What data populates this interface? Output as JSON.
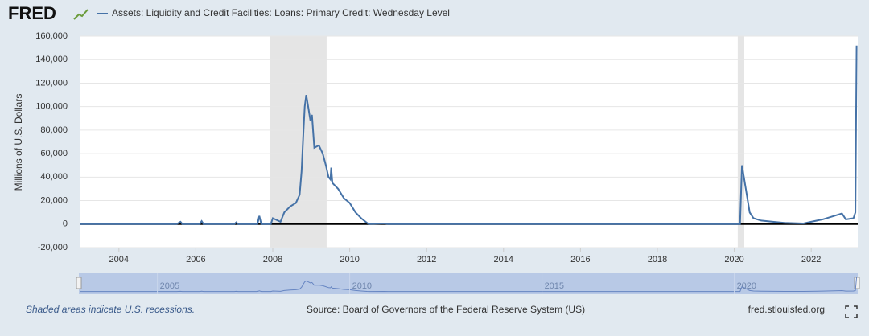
{
  "chart_data": {
    "type": "line",
    "brand": "FRED",
    "title": "Assets: Liquidity and Credit Facilities: Loans: Primary Credit: Wednesday Level",
    "ylabel": "Millions of U.S. Dollars",
    "note": "Shaded areas indicate U.S. recessions.",
    "source": "Source: Board of Governors of the Federal Reserve System (US)",
    "site": "fred.stlouisfed.org",
    "xlim": [
      2003.0,
      2023.21
    ],
    "xticks": [
      2004,
      2006,
      2008,
      2010,
      2012,
      2014,
      2016,
      2018,
      2020,
      2022
    ],
    "ylim": [
      -20000,
      160000
    ],
    "yticks": [
      {
        "value": -20000,
        "label": "-20,000"
      },
      0,
      {
        "value": 20000,
        "label": "20,000"
      },
      {
        "value": 40000,
        "label": "40,000"
      },
      {
        "value": 60000,
        "label": "60,000"
      },
      {
        "value": 80000,
        "label": "80,000"
      },
      {
        "value": 100000,
        "label": "100,000"
      },
      {
        "value": 120000,
        "label": "120,000"
      },
      {
        "value": 140000,
        "label": "140,000"
      },
      {
        "value": 160000,
        "label": "160,000"
      }
    ],
    "grid": true,
    "recessions": [
      [
        2007.93,
        2009.4
      ],
      [
        2020.09,
        2020.26
      ]
    ],
    "navigator_ticks": [
      2005,
      2010,
      2015,
      2020
    ],
    "series": [
      {
        "name": "Assets: Liquidity and Credit Facilities: Loans: Primary Credit: Wednesday Level",
        "color": "#4572a7",
        "x": [
          2003.0,
          2005.5,
          2005.6,
          2005.65,
          2006.1,
          2006.15,
          2006.2,
          2007.0,
          2007.05,
          2007.1,
          2007.6,
          2007.65,
          2007.7,
          2007.95,
          2008.0,
          2008.2,
          2008.3,
          2008.45,
          2008.6,
          2008.7,
          2008.75,
          2008.8,
          2008.83,
          2008.87,
          2008.92,
          2008.98,
          2009.02,
          2009.08,
          2009.2,
          2009.3,
          2009.38,
          2009.45,
          2009.5,
          2009.52,
          2009.55,
          2009.7,
          2009.85,
          2010.0,
          2010.15,
          2010.3,
          2010.45,
          2010.5,
          2010.9,
          2011.0,
          2020.15,
          2020.2,
          2020.3,
          2020.4,
          2020.5,
          2020.7,
          2021.0,
          2021.3,
          2021.8,
          2022.0,
          2022.3,
          2022.6,
          2022.8,
          2022.9,
          2023.1,
          2023.15,
          2023.18
        ],
        "values": [
          0,
          0,
          2000,
          0,
          0,
          2500,
          0,
          0,
          1500,
          0,
          0,
          7000,
          0,
          0,
          5000,
          2000,
          10000,
          15000,
          18000,
          25000,
          45000,
          80000,
          100000,
          110000,
          100000,
          88000,
          93000,
          65000,
          67000,
          60000,
          50000,
          40000,
          38000,
          48000,
          35000,
          30000,
          22000,
          18000,
          10000,
          5000,
          1000,
          0,
          500,
          0,
          0,
          50000,
          30000,
          10000,
          5000,
          3000,
          2000,
          1000,
          500,
          2000,
          4000,
          7000,
          9000,
          4000,
          5000,
          10000,
          152000
        ]
      }
    ]
  }
}
